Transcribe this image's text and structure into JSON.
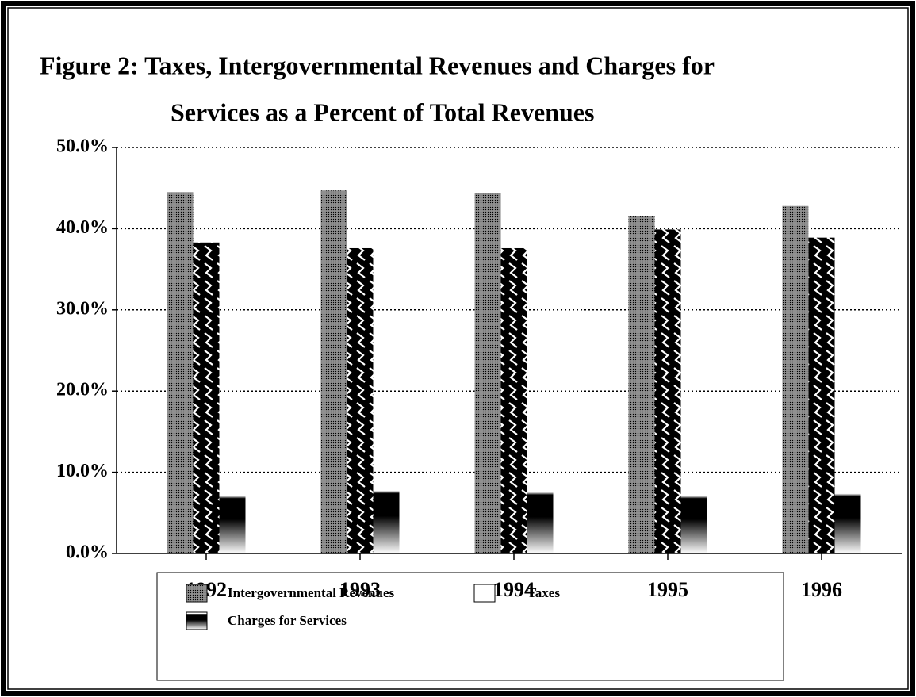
{
  "chart_data": {
    "type": "bar",
    "title": [
      "Figure 2:  Taxes, Intergovernmental Revenues and Charges for",
      "Services as a Percent of Total Revenues"
    ],
    "categories": [
      "1992",
      "1993",
      "1994",
      "1995",
      "1996"
    ],
    "series": [
      {
        "name": "Intergovernmental Revenues",
        "color": "#808080",
        "values": [
          44.5,
          44.7,
          44.4,
          41.5,
          42.8
        ]
      },
      {
        "name": "Taxes",
        "color": "#000000",
        "values": [
          38.3,
          37.6,
          37.6,
          39.9,
          38.9
        ]
      },
      {
        "name": "Charges for Services",
        "color": "#000000",
        "values": [
          7.7,
          8.4,
          8.2,
          7.7,
          8.0
        ]
      }
    ],
    "ylim": [
      0,
      50
    ],
    "yticks": [
      {
        "value": 0,
        "label": "0.0%"
      },
      {
        "value": 10,
        "label": "10.0%"
      },
      {
        "value": 20,
        "label": "20.0%"
      },
      {
        "value": 30,
        "label": "30.0%"
      },
      {
        "value": 40,
        "label": "40.0%"
      },
      {
        "value": 50,
        "label": "50.0%"
      }
    ],
    "grid": true
  }
}
